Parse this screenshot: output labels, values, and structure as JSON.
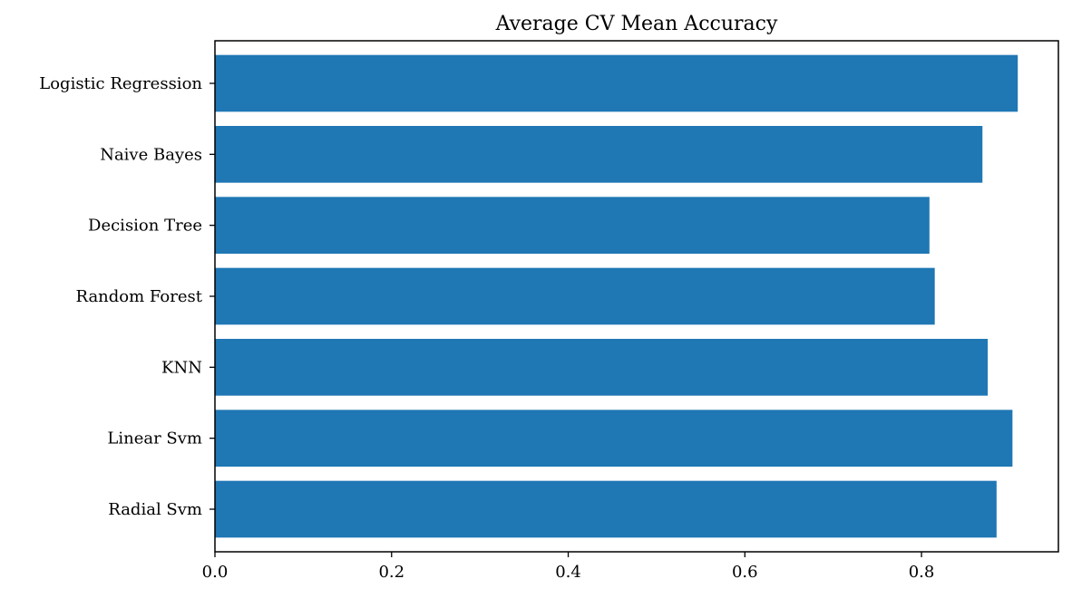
{
  "chart_data": {
    "type": "bar",
    "orientation": "horizontal",
    "title": "Average CV Mean Accuracy",
    "xlabel": "",
    "ylabel": "",
    "categories": [
      "Logistic Regression",
      "Naive Bayes",
      "Decision Tree",
      "Random Forest",
      "KNN",
      "Linear Svm",
      "Radial Svm"
    ],
    "values": [
      0.909,
      0.869,
      0.809,
      0.815,
      0.875,
      0.903,
      0.885
    ],
    "xlim": [
      0.0,
      0.955
    ],
    "xticks": [
      0.0,
      0.2,
      0.4,
      0.6,
      0.8
    ],
    "xtick_labels": [
      "0.0",
      "0.2",
      "0.4",
      "0.6",
      "0.8"
    ],
    "bar_color": "#1f77b4",
    "grid": false,
    "legend": "none"
  }
}
